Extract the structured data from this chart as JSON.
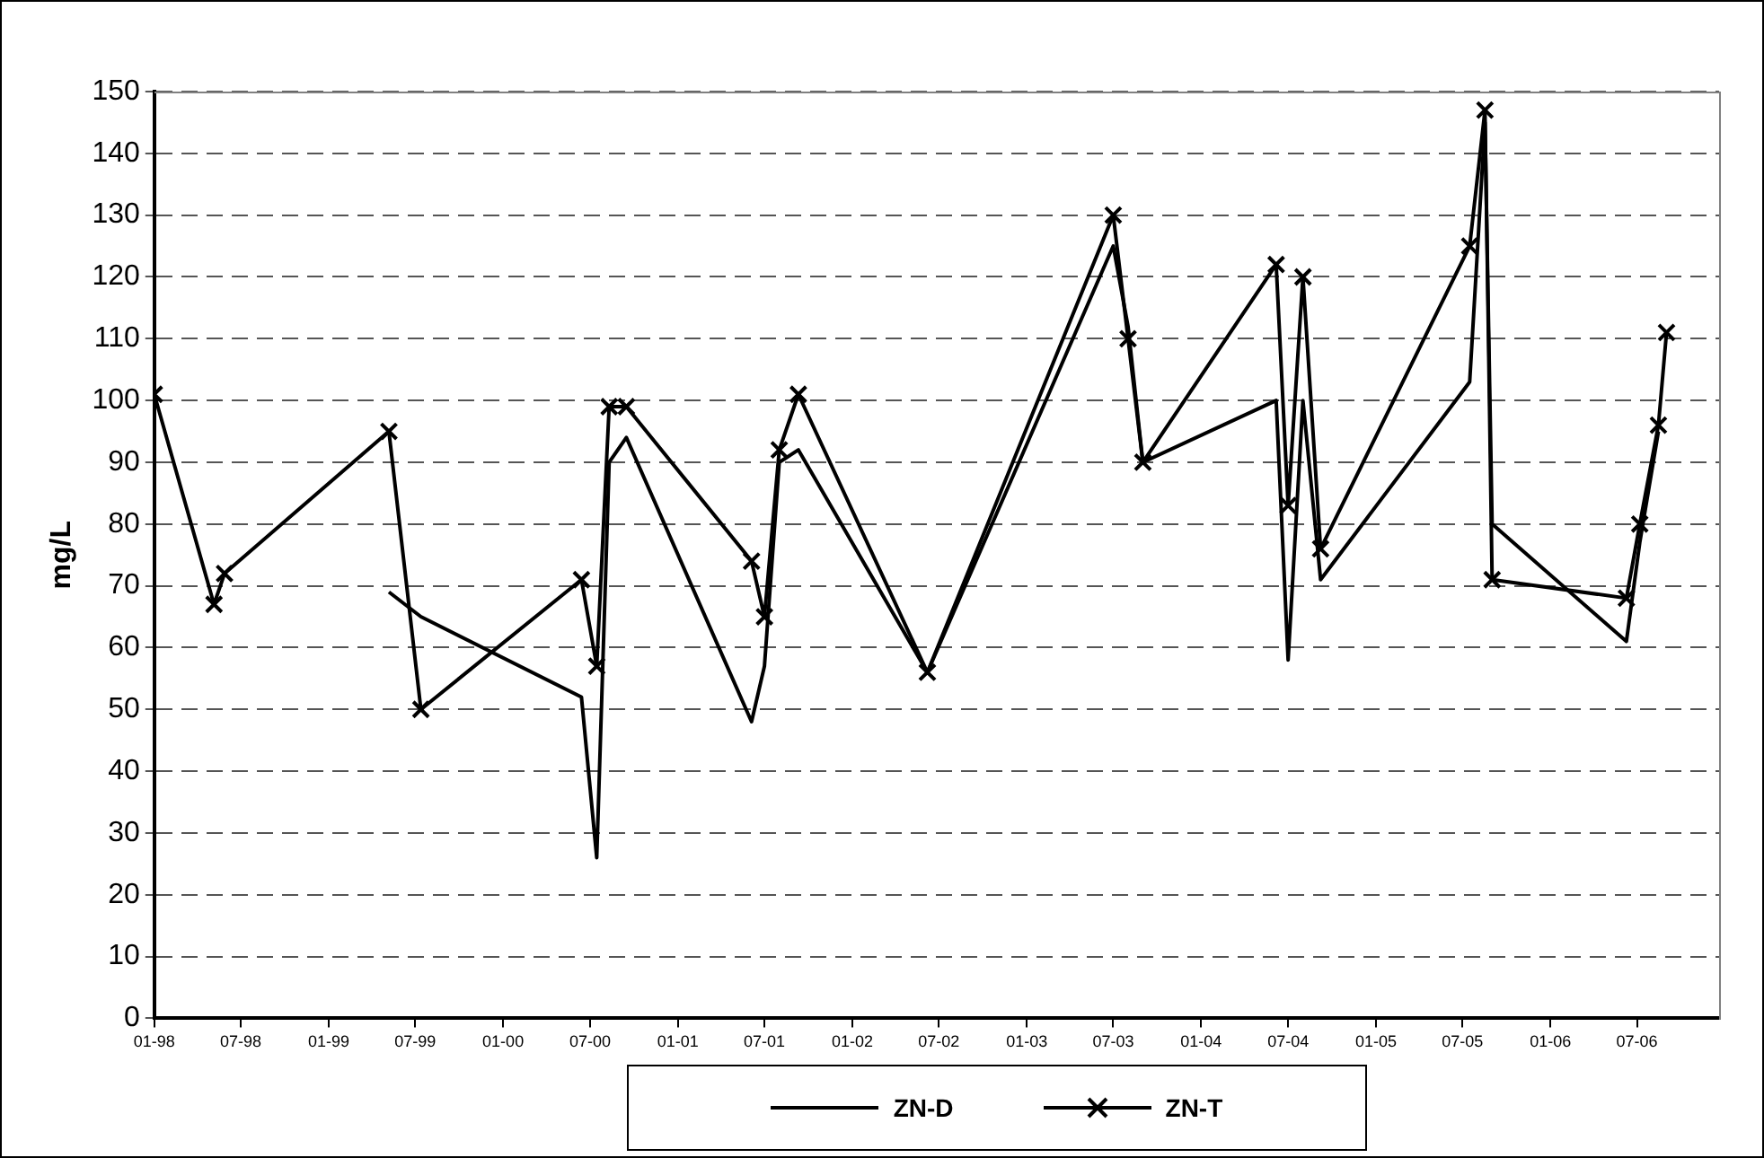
{
  "chart_data": {
    "type": "line",
    "ylabel": "mg/L",
    "legend": "bottom",
    "grid": "y",
    "line_style": "solid",
    "x": [
      "1998-01-01",
      "1998-05-06",
      "1998-05-28",
      "1999-05-07",
      "1999-07-13",
      "2000-06-13",
      "2000-07-15",
      "2000-08-10",
      "2000-09-15",
      "2001-06-04",
      "2001-07-01",
      "2001-08-01",
      "2001-09-10",
      "2002-06-07",
      "2003-07-01",
      "2003-08-01",
      "2003-09-01",
      "2004-06-06",
      "2004-07-01",
      "2004-08-01",
      "2004-09-07",
      "2005-07-16",
      "2005-08-17",
      "2005-09-01",
      "2006-06-09",
      "2006-07-07",
      "2006-08-15",
      "2006-09-01"
    ],
    "series": [
      {
        "name": "ZN-D",
        "color": "#000000",
        "marker": "none",
        "values": [
          null,
          null,
          null,
          69,
          65,
          52,
          26,
          90,
          94,
          48,
          57,
          90,
          92,
          56,
          125,
          112,
          90,
          100,
          58,
          100,
          71,
          103,
          145,
          80,
          61,
          77,
          95,
          null
        ]
      },
      {
        "name": "ZN-T",
        "color": "#000000",
        "marker": "cross",
        "values": [
          101,
          67,
          72,
          95,
          50,
          71,
          57,
          99,
          99,
          74,
          65,
          92,
          101,
          56,
          130,
          110,
          90,
          122,
          83,
          120,
          76,
          125,
          147,
          71,
          68,
          80,
          96,
          111
        ]
      }
    ],
    "xlim": [
      "1998-01-01",
      "2006-12-20"
    ],
    "xticks": [
      {
        "value": "1998-01-01",
        "label": "01-98"
      },
      {
        "value": "1998-07-01",
        "label": "07-98"
      },
      {
        "value": "1999-01-01",
        "label": "01-99"
      },
      {
        "value": "1999-07-01",
        "label": "07-99"
      },
      {
        "value": "2000-01-01",
        "label": "01-00"
      },
      {
        "value": "2000-07-01",
        "label": "07-00"
      },
      {
        "value": "2001-01-01",
        "label": "01-01"
      },
      {
        "value": "2001-07-01",
        "label": "07-01"
      },
      {
        "value": "2002-01-01",
        "label": "01-02"
      },
      {
        "value": "2002-07-01",
        "label": "07-02"
      },
      {
        "value": "2003-01-01",
        "label": "01-03"
      },
      {
        "value": "2003-07-01",
        "label": "07-03"
      },
      {
        "value": "2004-01-01",
        "label": "01-04"
      },
      {
        "value": "2004-07-01",
        "label": "07-04"
      },
      {
        "value": "2005-01-01",
        "label": "01-05"
      },
      {
        "value": "2005-07-01",
        "label": "07-05"
      },
      {
        "value": "2006-01-01",
        "label": "01-06"
      },
      {
        "value": "2006-07-01",
        "label": "07-06"
      }
    ],
    "ylim": [
      0,
      150
    ],
    "yticks": [
      0,
      10,
      20,
      30,
      40,
      50,
      60,
      70,
      80,
      90,
      100,
      110,
      120,
      130,
      140,
      150
    ]
  }
}
